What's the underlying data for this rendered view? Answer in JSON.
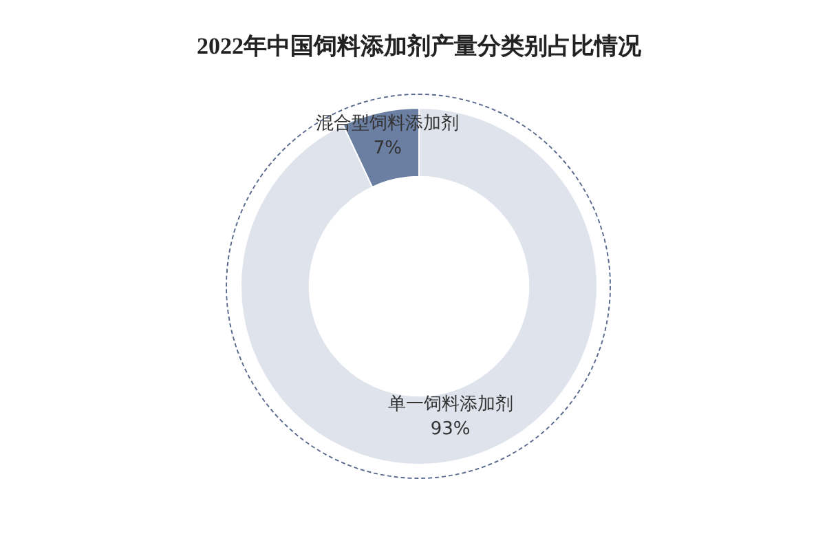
{
  "chart_data": {
    "type": "donut",
    "title": "2022年中国饲料添加剂产量分类别占比情况",
    "categories": [
      "单一饲料添加剂",
      "混合型饲料添加剂"
    ],
    "values": [
      93,
      7
    ],
    "colors": [
      "#dfe3ec",
      "#6b7fa3"
    ],
    "value_labels": [
      "93%",
      "7%"
    ],
    "legend": false
  }
}
